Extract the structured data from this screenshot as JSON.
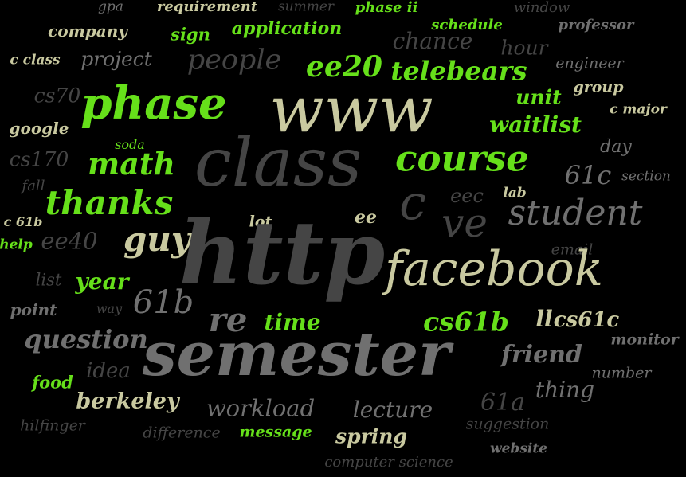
{
  "colors": {
    "background": "#000000",
    "bright_green": "#66e01a",
    "cream": "#c9c9a0",
    "gray": "#707070",
    "dark_gray": "#454545"
  },
  "words": [
    {
      "text": "gpa",
      "color": "gray"
    },
    {
      "text": "requirement",
      "color": "cream"
    },
    {
      "text": "summer",
      "color": "dark_gray"
    },
    {
      "text": "phase ii",
      "color": "bright_green"
    },
    {
      "text": "window",
      "color": "dark_gray"
    },
    {
      "text": "company",
      "color": "cream"
    },
    {
      "text": "sign",
      "color": "bright_green"
    },
    {
      "text": "application",
      "color": "bright_green"
    },
    {
      "text": "schedule",
      "color": "bright_green"
    },
    {
      "text": "chance",
      "color": "dark_gray"
    },
    {
      "text": "professor",
      "color": "gray"
    },
    {
      "text": "hour",
      "color": "dark_gray"
    },
    {
      "text": "c class",
      "color": "cream"
    },
    {
      "text": "project",
      "color": "gray"
    },
    {
      "text": "people",
      "color": "dark_gray"
    },
    {
      "text": "ee20",
      "color": "bright_green"
    },
    {
      "text": "telebears",
      "color": "bright_green"
    },
    {
      "text": "engineer",
      "color": "gray"
    },
    {
      "text": "cs70",
      "color": "dark_gray"
    },
    {
      "text": "phase",
      "color": "bright_green"
    },
    {
      "text": "www",
      "color": "cream"
    },
    {
      "text": "unit",
      "color": "bright_green"
    },
    {
      "text": "group",
      "color": "cream"
    },
    {
      "text": "c major",
      "color": "cream"
    },
    {
      "text": "google",
      "color": "cream"
    },
    {
      "text": "waitlist",
      "color": "bright_green"
    },
    {
      "text": "soda",
      "color": "bright_green"
    },
    {
      "text": "cs170",
      "color": "dark_gray"
    },
    {
      "text": "math",
      "color": "bright_green"
    },
    {
      "text": "class",
      "color": "dark_gray"
    },
    {
      "text": "course",
      "color": "bright_green"
    },
    {
      "text": "day",
      "color": "gray"
    },
    {
      "text": "61c",
      "color": "gray"
    },
    {
      "text": "section",
      "color": "gray"
    },
    {
      "text": "fall",
      "color": "dark_gray"
    },
    {
      "text": "thanks",
      "color": "bright_green"
    },
    {
      "text": "c",
      "color": "dark_gray"
    },
    {
      "text": "eec",
      "color": "dark_gray"
    },
    {
      "text": "lab",
      "color": "cream"
    },
    {
      "text": "c 61b",
      "color": "cream"
    },
    {
      "text": "lot",
      "color": "cream"
    },
    {
      "text": "ee",
      "color": "cream"
    },
    {
      "text": "ve",
      "color": "dark_gray"
    },
    {
      "text": "student",
      "color": "gray"
    },
    {
      "text": "guy",
      "color": "cream"
    },
    {
      "text": "http",
      "color": "dark_gray"
    },
    {
      "text": "ee40",
      "color": "dark_gray"
    },
    {
      "text": "help",
      "color": "bright_green"
    },
    {
      "text": "email",
      "color": "dark_gray"
    },
    {
      "text": "facebook",
      "color": "cream"
    },
    {
      "text": "list",
      "color": "dark_gray"
    },
    {
      "text": "year",
      "color": "bright_green"
    },
    {
      "text": "61b",
      "color": "gray"
    },
    {
      "text": "point",
      "color": "gray"
    },
    {
      "text": "way",
      "color": "dark_gray"
    },
    {
      "text": "re",
      "color": "gray"
    },
    {
      "text": "time",
      "color": "bright_green"
    },
    {
      "text": "cs61b",
      "color": "bright_green"
    },
    {
      "text": "ll",
      "color": "cream"
    },
    {
      "text": "cs61c",
      "color": "cream"
    },
    {
      "text": "question",
      "color": "gray"
    },
    {
      "text": "semester",
      "color": "gray"
    },
    {
      "text": "monitor",
      "color": "gray"
    },
    {
      "text": "friend",
      "color": "gray"
    },
    {
      "text": "idea",
      "color": "dark_gray"
    },
    {
      "text": "number",
      "color": "gray"
    },
    {
      "text": "food",
      "color": "bright_green"
    },
    {
      "text": "thing",
      "color": "gray"
    },
    {
      "text": "berkeley",
      "color": "cream"
    },
    {
      "text": "61a",
      "color": "dark_gray"
    },
    {
      "text": "workload",
      "color": "gray"
    },
    {
      "text": "lecture",
      "color": "gray"
    },
    {
      "text": "hilfinger",
      "color": "dark_gray"
    },
    {
      "text": "difference",
      "color": "dark_gray"
    },
    {
      "text": "message",
      "color": "bright_green"
    },
    {
      "text": "spring",
      "color": "cream"
    },
    {
      "text": "suggestion",
      "color": "dark_gray"
    },
    {
      "text": "website",
      "color": "gray"
    },
    {
      "text": "computer science",
      "color": "dark_gray"
    }
  ]
}
